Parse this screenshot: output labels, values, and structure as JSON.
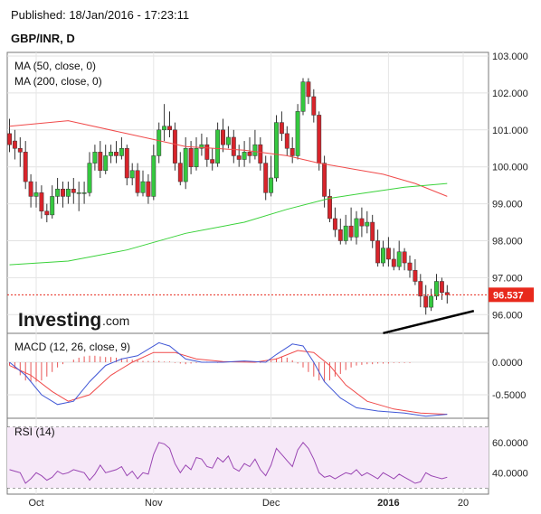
{
  "header": {
    "published": "Published: 18/Jan/2016 - 17:23:11",
    "symbol": "GBP/INR, D"
  },
  "watermark": {
    "brand": "Investing",
    "suffix": ".com"
  },
  "colors": {
    "up": "#35c83f",
    "down": "#d8242b",
    "ma50": "#f04a4a",
    "ma200": "#3ad23a",
    "macd": "#4057d6",
    "signal": "#f04a4a",
    "hist": "#e85555",
    "rsi": "#9a46b3",
    "rsi_band": "#f6e8f8",
    "price_label": "#e8291c"
  },
  "chart_data": [
    {
      "type": "candlestick",
      "title": "GBP/INR, D",
      "legend": [
        "MA (50, close, 0)",
        "MA (200, close, 0)"
      ],
      "ylim": [
        95.5,
        103.1
      ],
      "y_ticks": [
        "103.000",
        "102.000",
        "101.000",
        "100.000",
        "99.000",
        "98.000",
        "97.000",
        "96.000"
      ],
      "x_ticks": [
        "Oct",
        "Nov",
        "Dec",
        "2016",
        "20"
      ],
      "last_price": "96.537",
      "candles": [
        [
          100.9,
          100.6,
          101.3,
          100.4
        ],
        [
          100.7,
          100.5,
          101.0,
          100.2
        ],
        [
          100.5,
          100.4,
          100.8,
          100.0
        ],
        [
          100.4,
          99.6,
          100.7,
          99.4
        ],
        [
          99.6,
          99.2,
          99.8,
          98.9
        ],
        [
          99.2,
          99.3,
          99.6,
          98.9
        ],
        [
          99.3,
          98.8,
          99.5,
          98.6
        ],
        [
          98.8,
          98.7,
          99.0,
          98.5
        ],
        [
          98.7,
          99.2,
          99.5,
          98.6
        ],
        [
          99.2,
          99.4,
          99.7,
          99.0
        ],
        [
          99.4,
          99.2,
          99.6,
          98.9
        ],
        [
          99.2,
          99.4,
          99.6,
          99.0
        ],
        [
          99.4,
          99.3,
          99.7,
          99.0
        ],
        [
          99.3,
          99.3,
          99.6,
          98.8
        ],
        [
          99.3,
          99.3,
          99.6,
          99.0
        ],
        [
          99.3,
          100.1,
          100.4,
          99.2
        ],
        [
          100.1,
          100.4,
          100.6,
          99.9
        ],
        [
          100.4,
          99.9,
          100.7,
          99.7
        ],
        [
          99.9,
          100.3,
          100.6,
          99.8
        ],
        [
          100.3,
          100.4,
          100.6,
          100.1
        ],
        [
          100.4,
          100.3,
          100.7,
          100.1
        ],
        [
          100.3,
          100.5,
          100.8,
          100.2
        ],
        [
          100.5,
          99.7,
          100.6,
          99.5
        ],
        [
          99.7,
          99.9,
          100.1,
          99.5
        ],
        [
          99.9,
          99.3,
          100.1,
          99.2
        ],
        [
          99.3,
          99.6,
          99.9,
          99.2
        ],
        [
          99.6,
          99.2,
          99.8,
          99.0
        ],
        [
          99.2,
          100.3,
          100.6,
          99.1
        ],
        [
          100.3,
          101.0,
          101.2,
          100.1
        ],
        [
          101.0,
          101.1,
          101.7,
          100.7
        ],
        [
          101.1,
          101.0,
          101.5,
          100.8
        ],
        [
          101.0,
          100.1,
          101.2,
          99.9
        ],
        [
          100.1,
          99.6,
          100.4,
          99.5
        ],
        [
          99.6,
          100.5,
          100.8,
          99.4
        ],
        [
          100.5,
          100.0,
          100.7,
          99.8
        ],
        [
          100.0,
          100.5,
          100.8,
          99.9
        ],
        [
          100.5,
          100.6,
          100.9,
          100.3
        ],
        [
          100.6,
          100.2,
          100.8,
          100.0
        ],
        [
          100.2,
          100.1,
          100.5,
          99.9
        ],
        [
          100.1,
          101.0,
          101.2,
          100.0
        ],
        [
          101.0,
          100.6,
          101.3,
          100.4
        ],
        [
          100.6,
          100.8,
          101.1,
          100.5
        ],
        [
          100.8,
          100.3,
          101.0,
          100.1
        ],
        [
          100.3,
          100.2,
          100.6,
          100.0
        ],
        [
          100.2,
          100.4,
          100.7,
          100.0
        ],
        [
          100.4,
          100.3,
          100.8,
          100.1
        ],
        [
          100.3,
          100.6,
          101.0,
          100.2
        ],
        [
          100.6,
          100.1,
          100.8,
          99.9
        ],
        [
          100.1,
          99.3,
          100.3,
          99.1
        ],
        [
          99.3,
          99.7,
          100.3,
          99.2
        ],
        [
          99.7,
          101.2,
          101.4,
          99.6
        ],
        [
          101.2,
          100.9,
          101.5,
          100.7
        ],
        [
          100.9,
          100.5,
          101.1,
          100.3
        ],
        [
          100.5,
          100.3,
          100.8,
          100.1
        ],
        [
          100.3,
          101.5,
          101.7,
          100.2
        ],
        [
          101.5,
          102.3,
          102.4,
          101.4
        ],
        [
          102.3,
          101.9,
          102.4,
          101.7
        ],
        [
          101.9,
          101.4,
          102.1,
          101.2
        ],
        [
          101.4,
          100.1,
          101.5,
          99.9
        ],
        [
          100.1,
          99.2,
          100.3,
          98.9
        ],
        [
          99.2,
          98.6,
          99.4,
          98.5
        ],
        [
          98.6,
          98.3,
          98.9,
          98.1
        ],
        [
          98.3,
          98.0,
          98.6,
          97.9
        ],
        [
          98.0,
          98.4,
          98.7,
          97.9
        ],
        [
          98.4,
          98.1,
          98.9,
          98.0
        ],
        [
          98.1,
          98.6,
          98.8,
          97.9
        ],
        [
          98.6,
          98.4,
          98.9,
          98.1
        ],
        [
          98.4,
          98.5,
          98.8,
          98.2
        ],
        [
          98.5,
          98.0,
          98.7,
          97.8
        ],
        [
          98.0,
          97.4,
          98.3,
          97.3
        ],
        [
          97.4,
          97.8,
          98.0,
          97.3
        ],
        [
          97.8,
          97.5,
          98.1,
          97.3
        ],
        [
          97.5,
          97.3,
          97.8,
          97.2
        ],
        [
          97.3,
          97.7,
          98.0,
          97.2
        ],
        [
          97.7,
          97.4,
          97.8,
          97.2
        ],
        [
          97.4,
          97.2,
          97.6,
          97.0
        ],
        [
          97.2,
          96.9,
          97.5,
          96.8
        ],
        [
          96.9,
          96.5,
          97.1,
          96.2
        ],
        [
          96.5,
          96.2,
          96.8,
          96.0
        ],
        [
          96.2,
          96.5,
          96.7,
          96.1
        ],
        [
          96.5,
          96.9,
          97.1,
          96.4
        ],
        [
          96.9,
          96.6,
          97.0,
          96.4
        ],
        [
          96.6,
          96.54,
          96.8,
          96.3
        ]
      ],
      "ma50": [
        [
          0,
          101.1
        ],
        [
          11,
          101.25
        ],
        [
          22,
          100.9
        ],
        [
          33,
          100.55
        ],
        [
          44,
          100.45
        ],
        [
          52,
          100.3
        ],
        [
          58,
          100.1
        ],
        [
          64,
          99.95
        ],
        [
          70,
          99.8
        ],
        [
          76,
          99.55
        ],
        [
          82,
          99.2
        ]
      ],
      "ma200": [
        [
          0,
          97.35
        ],
        [
          11,
          97.45
        ],
        [
          22,
          97.75
        ],
        [
          33,
          98.2
        ],
        [
          44,
          98.5
        ],
        [
          52,
          98.85
        ],
        [
          60,
          99.15
        ],
        [
          66,
          99.28
        ],
        [
          74,
          99.45
        ],
        [
          82,
          99.55
        ]
      ],
      "trendline": [
        [
          70,
          95.5
        ],
        [
          87,
          96.1
        ]
      ]
    },
    {
      "type": "line",
      "title": "MACD (12, 26, close, 9)",
      "ylim": [
        -0.95,
        0.45
      ],
      "y_ticks": [
        "0.0000",
        "-0.5000"
      ],
      "macd": [
        [
          0,
          0.0
        ],
        [
          3,
          -0.2
        ],
        [
          6,
          -0.5
        ],
        [
          9,
          -0.65
        ],
        [
          12,
          -0.6
        ],
        [
          15,
          -0.3
        ],
        [
          18,
          -0.05
        ],
        [
          21,
          0.05
        ],
        [
          24,
          0.1
        ],
        [
          26,
          0.2
        ],
        [
          28,
          0.3
        ],
        [
          30,
          0.25
        ],
        [
          33,
          0.05
        ],
        [
          36,
          0.0
        ],
        [
          40,
          0.0
        ],
        [
          44,
          0.02
        ],
        [
          48,
          0.0
        ],
        [
          50,
          0.12
        ],
        [
          53,
          0.28
        ],
        [
          55,
          0.25
        ],
        [
          57,
          0.0
        ],
        [
          59,
          -0.3
        ],
        [
          62,
          -0.55
        ],
        [
          65,
          -0.7
        ],
        [
          69,
          -0.75
        ],
        [
          74,
          -0.78
        ],
        [
          78,
          -0.83
        ],
        [
          82,
          -0.8
        ]
      ],
      "signal": [
        [
          0,
          -0.05
        ],
        [
          4,
          -0.2
        ],
        [
          8,
          -0.45
        ],
        [
          11,
          -0.6
        ],
        [
          15,
          -0.5
        ],
        [
          19,
          -0.2
        ],
        [
          23,
          0.0
        ],
        [
          27,
          0.15
        ],
        [
          31,
          0.15
        ],
        [
          35,
          0.05
        ],
        [
          40,
          0.01
        ],
        [
          46,
          0.0
        ],
        [
          50,
          0.05
        ],
        [
          54,
          0.18
        ],
        [
          57,
          0.15
        ],
        [
          60,
          -0.05
        ],
        [
          63,
          -0.35
        ],
        [
          67,
          -0.6
        ],
        [
          72,
          -0.72
        ],
        [
          77,
          -0.78
        ],
        [
          82,
          -0.8
        ]
      ],
      "histogram": [
        -0.05,
        -0.1,
        -0.2,
        -0.28,
        -0.3,
        -0.3,
        -0.28,
        -0.22,
        -0.15,
        -0.08,
        -0.03,
        0.0,
        0.04,
        0.07,
        0.09,
        0.1,
        0.1,
        0.09,
        0.08,
        0.08,
        0.07,
        0.06,
        0.05,
        0.04,
        0.03,
        0.02,
        0.02,
        0.02,
        0.02,
        0.01,
        0.01,
        -0.01,
        -0.02,
        -0.03,
        -0.02,
        -0.01,
        0.0,
        0.01,
        0.0,
        -0.01,
        0.0,
        0.01,
        0.0,
        0.0,
        0.01,
        0.0,
        0.0,
        -0.01,
        0.0,
        0.02,
        0.06,
        0.08,
        0.07,
        0.03,
        -0.02,
        -0.08,
        -0.15,
        -0.22,
        -0.28,
        -0.3,
        -0.28,
        -0.22,
        -0.18,
        -0.12,
        -0.08,
        -0.05,
        -0.04,
        -0.03,
        -0.03,
        -0.02,
        -0.02,
        -0.02,
        -0.01,
        -0.01,
        -0.01,
        -0.01,
        0.0,
        0.0,
        0.0,
        0.0,
        0.0,
        0.0,
        0.0
      ]
    },
    {
      "type": "line",
      "title": "RSI (14)",
      "ylim": [
        26,
        72
      ],
      "y_ticks": [
        "60.0000",
        "40.0000"
      ],
      "bands": [
        30,
        70
      ],
      "values": [
        42,
        41,
        40,
        33,
        36,
        40,
        38,
        35,
        37,
        41,
        39,
        40,
        42,
        41,
        40,
        35,
        39,
        45,
        40,
        41,
        42,
        44,
        38,
        41,
        36,
        40,
        39,
        52,
        60,
        59,
        56,
        46,
        40,
        45,
        42,
        50,
        49,
        44,
        43,
        50,
        47,
        51,
        43,
        41,
        46,
        44,
        49,
        42,
        38,
        45,
        56,
        52,
        48,
        44,
        55,
        60,
        56,
        49,
        40,
        37,
        38,
        36,
        38,
        40,
        39,
        42,
        38,
        40,
        38,
        36,
        40,
        38,
        36,
        39,
        37,
        35,
        33,
        34,
        40,
        38,
        37,
        36,
        37
      ]
    }
  ]
}
